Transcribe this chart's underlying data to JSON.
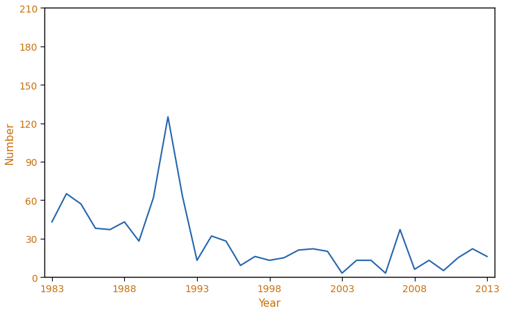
{
  "years": [
    1983,
    1984,
    1985,
    1986,
    1987,
    1988,
    1989,
    1990,
    1991,
    1992,
    1993,
    1994,
    1995,
    1996,
    1997,
    1998,
    1999,
    2000,
    2001,
    2002,
    2003,
    2004,
    2005,
    2006,
    2007,
    2008,
    2009,
    2010,
    2011,
    2012,
    2013
  ],
  "values": [
    43,
    65,
    57,
    38,
    37,
    43,
    28,
    62,
    125,
    63,
    13,
    32,
    28,
    9,
    16,
    13,
    15,
    21,
    22,
    20,
    3,
    13,
    13,
    3,
    37,
    6,
    13,
    5,
    15,
    22,
    16
  ],
  "line_color": "#2565AE",
  "line_width": 1.5,
  "xlabel": "Year",
  "ylabel": "Number",
  "xlim": [
    1982.5,
    2013.5
  ],
  "ylim": [
    0,
    210
  ],
  "yticks": [
    0,
    30,
    60,
    90,
    120,
    150,
    180,
    210
  ],
  "xticks": [
    1983,
    1988,
    1993,
    1998,
    2003,
    2008,
    2013
  ],
  "background_color": "#ffffff",
  "tick_label_color": "#C8700A",
  "xlabel_fontsize": 11,
  "ylabel_fontsize": 11,
  "tick_fontsize": 10,
  "spine_color": "#000000"
}
